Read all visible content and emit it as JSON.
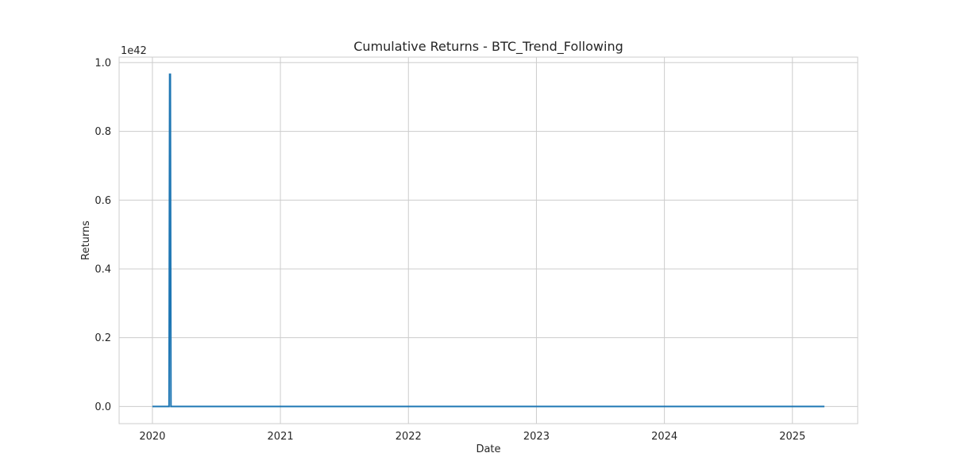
{
  "chart_data": {
    "type": "line",
    "title": "Cumulative Returns - BTC_Trend_Following",
    "xlabel": "Date",
    "ylabel": "Returns",
    "y_offset_text": "1e42",
    "x_tick_labels": [
      "2020",
      "2021",
      "2022",
      "2023",
      "2024",
      "2025"
    ],
    "y_tick_labels": [
      "0.0",
      "0.2",
      "0.4",
      "0.6",
      "0.8",
      "1.0"
    ],
    "x_ticks": [
      2020,
      2021,
      2022,
      2023,
      2024,
      2025
    ],
    "y_ticks": [
      0.0,
      0.2,
      0.4,
      0.6,
      0.8,
      1.0
    ],
    "xlim": [
      2019.74,
      2025.51
    ],
    "ylim": [
      -0.05,
      1.016
    ],
    "y_unit": "1e42",
    "grid": true,
    "series": [
      {
        "color": "#1f77b4",
        "x": [
          2020.0,
          2020.13,
          2020.135,
          2020.14,
          2020.145,
          2025.25
        ],
        "y": [
          0.0,
          0.0,
          0.966,
          0.966,
          0.0,
          0.0
        ]
      }
    ]
  }
}
